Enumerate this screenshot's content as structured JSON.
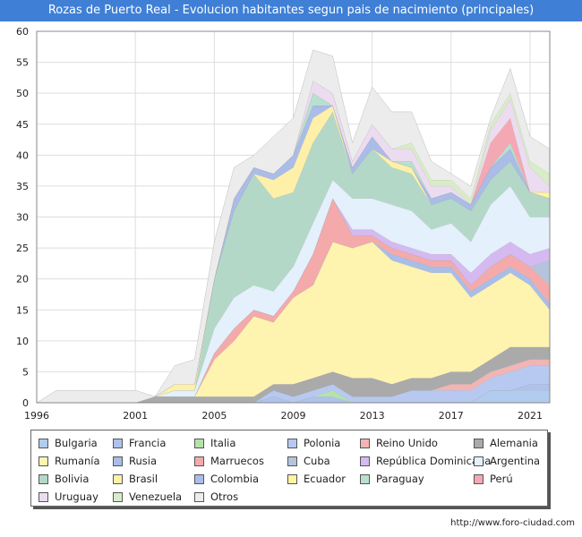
{
  "chart_data": {
    "type": "area",
    "stacked": true,
    "title": "Rozas de Puerto Real - Evolucion habitantes segun pais de nacimiento (principales)",
    "xlabel": "",
    "ylabel": "",
    "x": [
      1996,
      1997,
      1998,
      1999,
      2000,
      2001,
      2002,
      2003,
      2004,
      2005,
      2006,
      2007,
      2008,
      2009,
      2010,
      2011,
      2012,
      2013,
      2014,
      2015,
      2016,
      2017,
      2018,
      2019,
      2020,
      2021,
      2022
    ],
    "xticks": [
      1996,
      2001,
      2005,
      2009,
      2013,
      2017,
      2021
    ],
    "ylim": [
      0,
      60
    ],
    "yticks": [
      0,
      5,
      10,
      15,
      20,
      25,
      30,
      35,
      40,
      45,
      50,
      55,
      60
    ],
    "grid": true,
    "legend_position": "bottom",
    "series": [
      {
        "name": "Bulgaria",
        "color": "#b2ccf0",
        "values": [
          0,
          0,
          0,
          0,
          0,
          0,
          0,
          0,
          0,
          0,
          0,
          0,
          0,
          0,
          0,
          0,
          0,
          0,
          0,
          0,
          0,
          0,
          0,
          2,
          2,
          2,
          2
        ]
      },
      {
        "name": "Francia",
        "color": "#aec2ec",
        "values": [
          0,
          0,
          0,
          0,
          0,
          0,
          0,
          0,
          0,
          0,
          0,
          0,
          1,
          0,
          1,
          1,
          0,
          0,
          0,
          0,
          0,
          0,
          0,
          0,
          0,
          1,
          1
        ]
      },
      {
        "name": "Italia",
        "color": "#b4e3a8",
        "values": [
          0,
          0,
          0,
          0,
          0,
          0,
          0,
          0,
          0,
          0,
          0,
          0,
          0,
          0,
          0,
          1,
          0,
          0,
          0,
          0,
          0,
          0,
          0,
          0,
          0,
          0,
          0
        ]
      },
      {
        "name": "Polonia",
        "color": "#b7c9f0",
        "values": [
          0,
          0,
          0,
          0,
          0,
          0,
          0,
          0,
          0,
          0,
          0,
          0,
          1,
          1,
          1,
          1,
          1,
          1,
          1,
          2,
          2,
          2,
          2,
          2,
          3,
          3,
          3
        ]
      },
      {
        "name": "Reino Unido",
        "color": "#f2b4b4",
        "values": [
          0,
          0,
          0,
          0,
          0,
          0,
          0,
          0,
          0,
          0,
          0,
          0,
          0,
          0,
          0,
          0,
          0,
          0,
          0,
          0,
          0,
          1,
          1,
          1,
          1,
          1,
          1
        ]
      },
      {
        "name": "Alemania",
        "color": "#aaaaaa",
        "values": [
          0,
          0,
          0,
          0,
          0,
          0,
          1,
          1,
          1,
          1,
          1,
          1,
          1,
          2,
          2,
          2,
          3,
          3,
          2,
          2,
          2,
          2,
          2,
          2,
          3,
          2,
          2
        ]
      },
      {
        "name": "Rumanía",
        "color": "#fff3b0",
        "values": [
          0,
          0,
          0,
          0,
          0,
          0,
          0,
          0,
          0,
          6,
          9,
          13,
          10,
          14,
          15,
          21,
          21,
          22,
          20,
          18,
          17,
          16,
          12,
          12,
          12,
          10,
          6
        ]
      },
      {
        "name": "Rusia",
        "color": "#a8bde8",
        "values": [
          0,
          0,
          0,
          0,
          0,
          0,
          0,
          0,
          0,
          0,
          0,
          0,
          0,
          0,
          0,
          0,
          0,
          0,
          1,
          1,
          1,
          1,
          1,
          1,
          1,
          1,
          1
        ]
      },
      {
        "name": "Marruecos",
        "color": "#f4aaaa",
        "values": [
          0,
          0,
          0,
          0,
          0,
          0,
          0,
          0,
          0,
          1,
          2,
          1,
          1,
          1,
          5,
          7,
          2,
          1,
          1,
          1,
          1,
          1,
          1,
          2,
          2,
          2,
          3
        ]
      },
      {
        "name": "Cuba",
        "color": "#b4c4dc",
        "values": [
          0,
          0,
          0,
          0,
          0,
          0,
          0,
          0,
          0,
          0,
          0,
          0,
          0,
          0,
          0,
          0,
          0,
          0,
          0,
          0,
          0,
          0,
          0,
          0,
          0,
          0,
          4
        ]
      },
      {
        "name": "República Dominicana",
        "color": "#d4baf0",
        "values": [
          0,
          0,
          0,
          0,
          0,
          0,
          0,
          0,
          0,
          0,
          0,
          0,
          0,
          0,
          0,
          0,
          1,
          1,
          1,
          1,
          1,
          1,
          2,
          2,
          2,
          2,
          2
        ]
      },
      {
        "name": "Argentina",
        "color": "#e4f0fb",
        "values": [
          0,
          0,
          0,
          0,
          0,
          0,
          0,
          1,
          1,
          4,
          5,
          4,
          4,
          4,
          5,
          3,
          5,
          5,
          6,
          6,
          4,
          5,
          5,
          8,
          9,
          6,
          5
        ]
      },
      {
        "name": "Bolivia",
        "color": "#b4d8c8",
        "values": [
          0,
          0,
          0,
          0,
          0,
          0,
          0,
          0,
          0,
          8,
          14,
          18,
          15,
          12,
          13,
          11,
          4,
          8,
          6,
          6,
          4,
          4,
          5,
          4,
          4,
          4,
          3
        ]
      },
      {
        "name": "Brasil",
        "color": "#fef0a8",
        "values": [
          0,
          0,
          0,
          0,
          0,
          0,
          0,
          1,
          1,
          0,
          0,
          0,
          3,
          4,
          4,
          1,
          0,
          0,
          1,
          1,
          0,
          0,
          0,
          0,
          0,
          0,
          0
        ]
      },
      {
        "name": "Colombia",
        "color": "#aabce8",
        "values": [
          0,
          0,
          0,
          0,
          0,
          0,
          0,
          0,
          0,
          0,
          2,
          1,
          1,
          2,
          2,
          0,
          1,
          2,
          0,
          0,
          1,
          1,
          1,
          2,
          2,
          0,
          0
        ]
      },
      {
        "name": "Ecuador",
        "color": "#fff4a0",
        "values": [
          0,
          0,
          0,
          0,
          0,
          0,
          0,
          0,
          0,
          0,
          0,
          0,
          0,
          0,
          0,
          0,
          0,
          0,
          0,
          0,
          0,
          0,
          0,
          0,
          0,
          0,
          1
        ]
      },
      {
        "name": "Paraguay",
        "color": "#b8e0d0",
        "values": [
          0,
          0,
          0,
          0,
          0,
          0,
          0,
          0,
          0,
          0,
          0,
          0,
          0,
          0,
          2,
          0,
          0,
          0,
          0,
          1,
          0,
          0,
          0,
          0,
          1,
          0,
          0
        ]
      },
      {
        "name": "Perú",
        "color": "#f4a8b4",
        "values": [
          0,
          0,
          0,
          0,
          0,
          0,
          0,
          0,
          0,
          0,
          0,
          0,
          0,
          0,
          0,
          0,
          0,
          0,
          0,
          0,
          0,
          0,
          0,
          4,
          4,
          0,
          0
        ]
      },
      {
        "name": "Uruguay",
        "color": "#ecdcf0",
        "values": [
          0,
          0,
          0,
          0,
          0,
          0,
          0,
          0,
          0,
          0,
          0,
          0,
          0,
          0,
          2,
          2,
          1,
          2,
          2,
          2,
          2,
          1,
          0,
          2,
          3,
          4,
          1
        ]
      },
      {
        "name": "Venezuela",
        "color": "#d8ecc8",
        "values": [
          0,
          0,
          0,
          0,
          0,
          0,
          0,
          0,
          0,
          0,
          0,
          0,
          0,
          0,
          0,
          0,
          0,
          0,
          0,
          1,
          1,
          1,
          1,
          1,
          1,
          1,
          2
        ]
      },
      {
        "name": "Otros",
        "color": "#ececec",
        "values": [
          0,
          2,
          2,
          2,
          2,
          2,
          0,
          3,
          4,
          6,
          5,
          2,
          6,
          6,
          5,
          6,
          3,
          6,
          6,
          5,
          3,
          1,
          2,
          1,
          4,
          4,
          4
        ]
      }
    ]
  },
  "source_label": "http://www.foro-ciudad.com"
}
